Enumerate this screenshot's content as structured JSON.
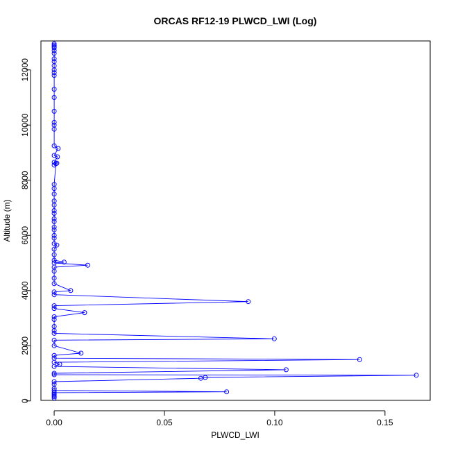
{
  "chart_data": {
    "type": "line",
    "title": "ORCAS RF12-19 PLWCD_LWI (Log)",
    "xlabel": "PLWCD_LWI",
    "ylabel": "Altitude (m)",
    "xlim": [
      -0.006,
      0.1705
    ],
    "ylim": [
      20,
      13050
    ],
    "x_ticks": [
      0,
      0.05,
      0.1,
      0.15
    ],
    "x_tick_labels": [
      "0.00",
      "0.05",
      "0.10",
      "0.15"
    ],
    "y_ticks": [
      0,
      2000,
      4000,
      6000,
      8000,
      10000,
      12000
    ],
    "y_tick_labels": [
      "0",
      "2000",
      "4000",
      "6000",
      "8000",
      "10000",
      "12000"
    ],
    "grid": false,
    "markers": "open-circle",
    "series": [
      {
        "color": "#0000ff",
        "points": [
          {
            "x": 0,
            "y": 12950
          },
          {
            "x": 0,
            "y": 12900
          },
          {
            "x": 0,
            "y": 12850
          },
          {
            "x": 0,
            "y": 12800
          },
          {
            "x": 0,
            "y": 12700
          },
          {
            "x": 0,
            "y": 12600
          },
          {
            "x": 0,
            "y": 12400
          },
          {
            "x": 0,
            "y": 12300
          },
          {
            "x": 0,
            "y": 12150
          },
          {
            "x": 0,
            "y": 12000
          },
          {
            "x": 0,
            "y": 11900
          },
          {
            "x": 0,
            "y": 11800
          },
          {
            "x": 0,
            "y": 11300
          },
          {
            "x": 0,
            "y": 11000
          },
          {
            "x": 0,
            "y": 10500
          },
          {
            "x": 0,
            "y": 10100
          },
          {
            "x": 0,
            "y": 10000
          },
          {
            "x": 0,
            "y": 9850
          },
          {
            "x": 0,
            "y": 9250
          },
          {
            "x": 0.0018,
            "y": 9150
          },
          {
            "x": 0,
            "y": 8900
          },
          {
            "x": 0.0015,
            "y": 8850
          },
          {
            "x": 0,
            "y": 8650
          },
          {
            "x": 0.0012,
            "y": 8620
          },
          {
            "x": 0,
            "y": 8550
          },
          {
            "x": 0.0008,
            "y": 8600
          },
          {
            "x": 0,
            "y": 7850
          },
          {
            "x": 0,
            "y": 7700
          },
          {
            "x": 0,
            "y": 7500
          },
          {
            "x": 0,
            "y": 7250
          },
          {
            "x": 0,
            "y": 7100
          },
          {
            "x": 0,
            "y": 6900
          },
          {
            "x": 0,
            "y": 6800
          },
          {
            "x": 0,
            "y": 6600
          },
          {
            "x": 0,
            "y": 6500
          },
          {
            "x": 0,
            "y": 6300
          },
          {
            "x": 0,
            "y": 6200
          },
          {
            "x": 0,
            "y": 6000
          },
          {
            "x": 0,
            "y": 5900
          },
          {
            "x": 0,
            "y": 5700
          },
          {
            "x": 0.0012,
            "y": 5650
          },
          {
            "x": 0,
            "y": 5500
          },
          {
            "x": 0,
            "y": 5300
          },
          {
            "x": 0,
            "y": 5100
          },
          {
            "x": 0.0045,
            "y": 5030
          },
          {
            "x": 0,
            "y": 5000
          },
          {
            "x": 0.0152,
            "y": 4920
          },
          {
            "x": 0,
            "y": 4850
          },
          {
            "x": 0,
            "y": 4700
          },
          {
            "x": 0,
            "y": 4450
          },
          {
            "x": 0,
            "y": 4250
          },
          {
            "x": 0.0075,
            "y": 4000
          },
          {
            "x": 0,
            "y": 3950
          },
          {
            "x": 0,
            "y": 3850
          },
          {
            "x": 0.088,
            "y": 3600
          },
          {
            "x": 0,
            "y": 3450
          },
          {
            "x": 0,
            "y": 3350
          },
          {
            "x": 0.0138,
            "y": 3200
          },
          {
            "x": 0,
            "y": 3050
          },
          {
            "x": 0,
            "y": 2950
          },
          {
            "x": 0,
            "y": 2700
          },
          {
            "x": 0,
            "y": 2550
          },
          {
            "x": 0,
            "y": 2450
          },
          {
            "x": 0.0998,
            "y": 2250
          },
          {
            "x": 0,
            "y": 2200
          },
          {
            "x": 0,
            "y": 2000
          },
          {
            "x": 0.0122,
            "y": 1730
          },
          {
            "x": 0,
            "y": 1650
          },
          {
            "x": 0,
            "y": 1550
          },
          {
            "x": 0.1385,
            "y": 1500
          },
          {
            "x": 0,
            "y": 1400
          },
          {
            "x": 0.0025,
            "y": 1330
          },
          {
            "x": 0,
            "y": 1250
          },
          {
            "x": 0.1052,
            "y": 1130
          },
          {
            "x": 0,
            "y": 1000
          },
          {
            "x": 0,
            "y": 950
          },
          {
            "x": 0.1642,
            "y": 930
          },
          {
            "x": 0.0685,
            "y": 850
          },
          {
            "x": 0.0665,
            "y": 820
          },
          {
            "x": 0,
            "y": 700
          },
          {
            "x": 0,
            "y": 600
          },
          {
            "x": 0,
            "y": 450
          },
          {
            "x": 0,
            "y": 380
          },
          {
            "x": 0.0782,
            "y": 330
          },
          {
            "x": 0,
            "y": 300
          },
          {
            "x": 0,
            "y": 250
          },
          {
            "x": 0,
            "y": 200
          },
          {
            "x": 0,
            "y": 150
          },
          {
            "x": 0,
            "y": 100
          }
        ]
      }
    ]
  }
}
